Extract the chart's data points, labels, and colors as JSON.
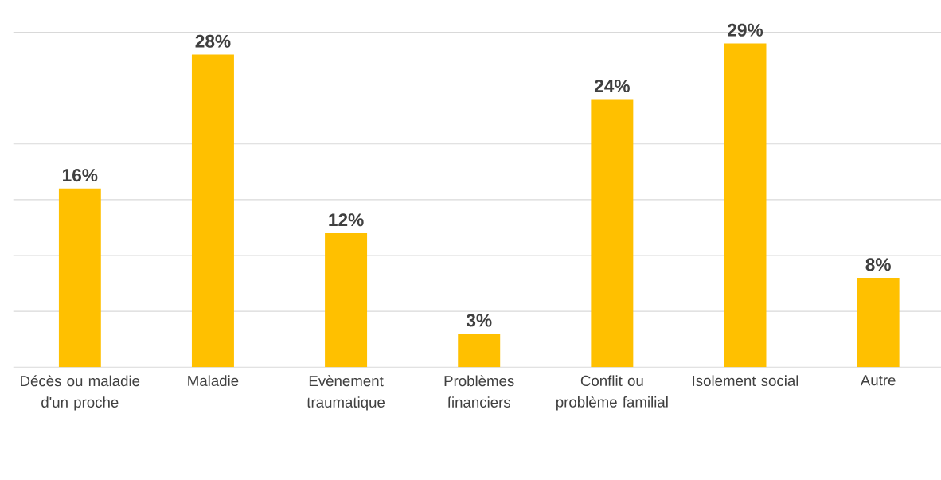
{
  "chart_data": {
    "type": "bar",
    "categories": [
      "Décès ou maladie d'un proche",
      "Maladie",
      "Evènement traumatique",
      "Problèmes financiers",
      "Conflit ou problème familial",
      "Isolement social",
      "Autre"
    ],
    "values": [
      16,
      28,
      12,
      3,
      24,
      29,
      8
    ],
    "value_labels": [
      "16%",
      "28%",
      "12%",
      "3%",
      "24%",
      "29%",
      "8%"
    ],
    "color": "#ffc000",
    "ylim": [
      0,
      35
    ],
    "yticks": [
      {
        "value": 0,
        "label": null
      },
      {
        "value": 5,
        "label": null
      },
      {
        "value": 10,
        "label": null
      },
      {
        "value": 15,
        "label": null
      },
      {
        "value": 20,
        "label": null
      },
      {
        "value": 25,
        "label": null
      },
      {
        "value": 30,
        "label": null
      },
      {
        "value": 35,
        "label": null
      }
    ],
    "grid": "y",
    "tick_labels": "x"
  }
}
